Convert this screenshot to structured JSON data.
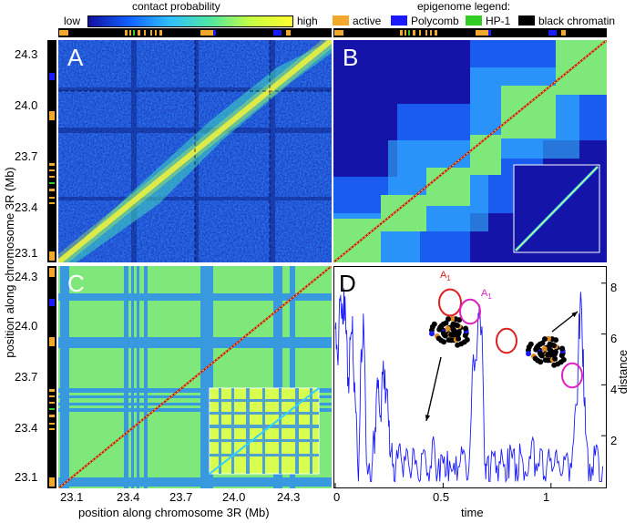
{
  "colorbar": {
    "title": "contact probability",
    "low_label": "low",
    "high_label": "high",
    "colors": [
      "#1010a0",
      "#1060ff",
      "#30c0ff",
      "#50e8a0",
      "#c8ff40",
      "#ffff30"
    ]
  },
  "legend": {
    "title": "epigenome legend:",
    "items": [
      {
        "label": "active",
        "color": "#f2a82a"
      },
      {
        "label": "Polycomb",
        "color": "#1a1aff"
      },
      {
        "label": "HP-1",
        "color": "#33cc22"
      },
      {
        "label": "black chromatin",
        "color": "#000000"
      }
    ]
  },
  "axes": {
    "y_label": "position along chromosome 3R (Mb)",
    "x_label": "position along chromosome 3R (Mb)",
    "y_ticks_top": [
      "24.3",
      "24.0",
      "23.7",
      "23.4",
      "23.1"
    ],
    "y_ticks_bottom": [
      "24.3",
      "24.0",
      "23.7",
      "23.4",
      "23.1"
    ],
    "x_ticks": [
      "23.1",
      "23.4",
      "23.7",
      "24.0",
      "24.3"
    ]
  },
  "panels": {
    "A": {
      "letter": "A"
    },
    "B": {
      "letter": "B"
    },
    "C": {
      "letter": "C"
    },
    "D": {
      "letter": "D",
      "a_label_1": "A",
      "a_sub_1": "1",
      "a_label_2": "A",
      "a_sub_2": "1"
    }
  },
  "chart_data": {
    "type": "line",
    "xlabel": "time",
    "ylabel": "distance",
    "xlim": [
      0,
      1.25
    ],
    "ylim": [
      0,
      8.6
    ],
    "x_ticks": [
      "0",
      "0.5",
      "1"
    ],
    "y_ticks": [
      "2",
      "4",
      "6",
      "8"
    ],
    "series": [
      {
        "color": "#1a1aff",
        "x": [
          0.0,
          0.01,
          0.02,
          0.03,
          0.04,
          0.05,
          0.06,
          0.07,
          0.08,
          0.09,
          0.1,
          0.11,
          0.12,
          0.13,
          0.14,
          0.15,
          0.16,
          0.17,
          0.18,
          0.19,
          0.2,
          0.21,
          0.22,
          0.23,
          0.24,
          0.25,
          0.26,
          0.27,
          0.28,
          0.3,
          0.32,
          0.34,
          0.36,
          0.38,
          0.4,
          0.42,
          0.44,
          0.46,
          0.48,
          0.5,
          0.52,
          0.54,
          0.56,
          0.58,
          0.6,
          0.62,
          0.64,
          0.66,
          0.67,
          0.68,
          0.69,
          0.7,
          0.71,
          0.72,
          0.74,
          0.76,
          0.78,
          0.8,
          0.82,
          0.84,
          0.86,
          0.88,
          0.9,
          0.92,
          0.94,
          0.96,
          0.98,
          1.0,
          1.02,
          1.04,
          1.06,
          1.08,
          1.1,
          1.12,
          1.13,
          1.14,
          1.15,
          1.16,
          1.18,
          1.2,
          1.22,
          1.24
        ],
        "y": [
          6.2,
          5.1,
          7.4,
          6.6,
          7.8,
          6.0,
          4.3,
          5.8,
          6.7,
          4.1,
          2.2,
          1.1,
          5.4,
          6.8,
          3.2,
          0.5,
          0.6,
          0.8,
          1.9,
          3.5,
          4.2,
          2.8,
          4.4,
          4.6,
          3.8,
          2.6,
          1.4,
          0.9,
          0.8,
          1.7,
          1.2,
          0.9,
          1.5,
          0.7,
          1.3,
          1.0,
          0.8,
          1.6,
          1.1,
          0.9,
          1.4,
          0.6,
          1.2,
          1.0,
          1.3,
          0.8,
          5.2,
          6.1,
          7.0,
          6.3,
          1.9,
          0.9,
          1.2,
          0.7,
          1.4,
          1.0,
          0.8,
          1.5,
          1.1,
          0.9,
          1.3,
          0.6,
          1.2,
          1.8,
          0.9,
          1.4,
          0.8,
          1.1,
          1.3,
          0.7,
          1.2,
          1.0,
          1.5,
          3.2,
          6.8,
          7.3,
          5.4,
          2.1,
          0.9,
          1.6,
          1.2,
          0.8
        ]
      }
    ]
  }
}
